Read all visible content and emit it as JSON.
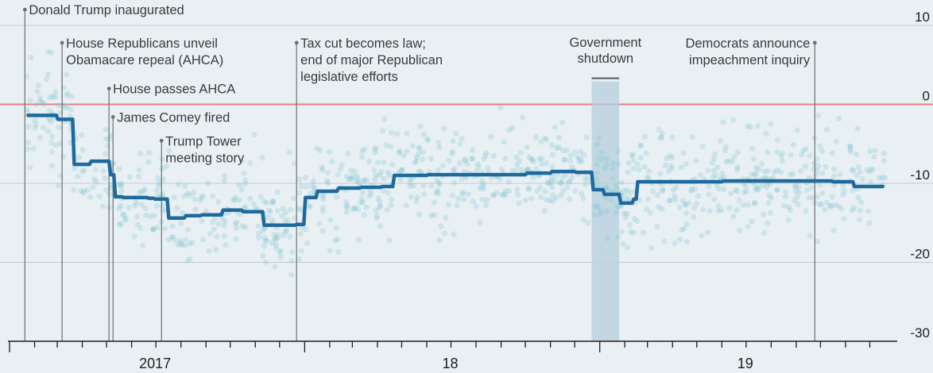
{
  "chart_data": {
    "type": "line",
    "title": "",
    "xlabel": "",
    "ylabel": "",
    "ylim": [
      -30,
      10
    ],
    "yticks": [
      10,
      0,
      -10,
      -20,
      -30
    ],
    "xlim": [
      "2017-01-01",
      "2019-12-31"
    ],
    "x_labels": [
      {
        "label": "2017",
        "date": "2017-06-30"
      },
      {
        "label": "18",
        "date": "2018-06-30"
      },
      {
        "label": "19",
        "date": "2019-06-30"
      }
    ],
    "grid": true,
    "zero_line_color": "#e57f7f",
    "line_color": "#1e6a9e",
    "dot_color": "#8cc8d4",
    "shade_color": "#b4cfdc",
    "series": [
      {
        "x": [
          "2017-01-20",
          "2017-02-28",
          "2017-03-07",
          "2017-03-20",
          "2017-04-10",
          "2017-05-04",
          "2017-05-10",
          "2017-05-20",
          "2017-06-20",
          "2017-06-28",
          "2017-07-15",
          "2017-08-05",
          "2017-08-25",
          "2017-09-20",
          "2017-10-15",
          "2017-11-10",
          "2017-12-20",
          "2017-12-31",
          "2018-01-15",
          "2018-02-10",
          "2018-03-10",
          "2018-04-05",
          "2018-04-20",
          "2018-06-01",
          "2018-09-01",
          "2018-10-01",
          "2018-11-01",
          "2018-12-01",
          "2018-12-22",
          "2019-01-05",
          "2019-01-25",
          "2019-02-10",
          "2019-02-15",
          "2019-06-01",
          "2019-09-24",
          "2019-10-15",
          "2019-11-10",
          "2019-12-15"
        ],
        "y": [
          -1.4,
          -1.9,
          -1.9,
          -7.6,
          -7.2,
          -8.9,
          -11.7,
          -11.8,
          -11.9,
          -12.0,
          -14.4,
          -14.1,
          -14.0,
          -13.4,
          -13.6,
          -15.3,
          -15.2,
          -11.8,
          -11.0,
          -10.6,
          -10.5,
          -10.4,
          -9.0,
          -8.9,
          -8.9,
          -8.7,
          -8.5,
          -8.6,
          -10.8,
          -11.4,
          -12.5,
          -12.0,
          -9.8,
          -9.7,
          -9.7,
          -9.8,
          -10.4,
          -10.4
        ]
      }
    ],
    "events": [
      {
        "date": "2017-01-20",
        "label_lines": [
          "Donald Trump inaugurated"
        ],
        "top": 12.0
      },
      {
        "date": "2017-03-07",
        "label_lines": [
          "House Republicans unveil",
          "Obamacare repeal (AHCA)"
        ],
        "top": 7.8
      },
      {
        "date": "2017-05-04",
        "label_lines": [
          "House passes AHCA"
        ],
        "top": 2.0
      },
      {
        "date": "2017-05-09",
        "label_lines": [
          "James Comey fired"
        ],
        "top": -1.6
      },
      {
        "date": "2017-07-08",
        "label_lines": [
          "Trump Tower",
          "meeting story"
        ],
        "top": -4.6
      },
      {
        "date": "2017-12-22",
        "label_lines": [
          "Tax cut becomes law;",
          "end of major Republican",
          "legislative efforts"
        ],
        "top": 7.8
      },
      {
        "date": "2019-09-24",
        "label_lines": [
          "Democrats announce",
          "impeachment inquiry"
        ],
        "top": 7.8,
        "align": "end"
      }
    ],
    "shutdown": {
      "start": "2018-12-22",
      "end": "2019-01-25",
      "label_lines": [
        "Government",
        "shutdown"
      ]
    }
  }
}
